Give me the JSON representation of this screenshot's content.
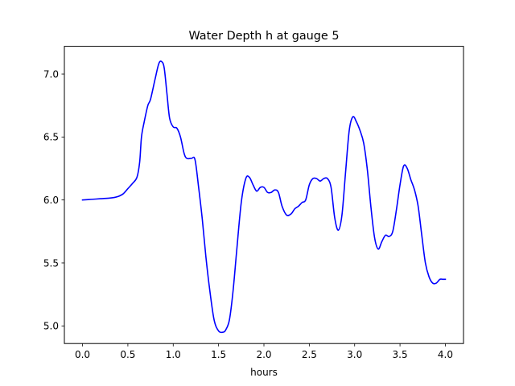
{
  "chart_data": {
    "type": "line",
    "title": "Water Depth h at gauge 5",
    "xlabel": "hours",
    "ylabel": "",
    "xlim": [
      -0.2,
      4.2
    ],
    "ylim": [
      4.86,
      7.22
    ],
    "xticks": [
      0.0,
      0.5,
      1.0,
      1.5,
      2.0,
      2.5,
      3.0,
      3.5,
      4.0
    ],
    "xtick_labels": [
      "0.0",
      "0.5",
      "1.0",
      "1.5",
      "2.0",
      "2.5",
      "3.0",
      "3.5",
      "4.0"
    ],
    "yticks": [
      5.0,
      5.5,
      6.0,
      6.5,
      7.0
    ],
    "ytick_labels": [
      "5.0",
      "5.5",
      "6.0",
      "6.5",
      "7.0"
    ],
    "grid": false,
    "legend": "none",
    "series": [
      {
        "color": "#0000ff",
        "x": [
          0.0,
          0.1,
          0.2,
          0.3,
          0.35,
          0.4,
          0.45,
          0.5,
          0.55,
          0.6,
          0.63,
          0.65,
          0.68,
          0.72,
          0.75,
          0.8,
          0.84,
          0.87,
          0.9,
          0.93,
          0.96,
          1.0,
          1.04,
          1.08,
          1.12,
          1.15,
          1.2,
          1.24,
          1.28,
          1.32,
          1.36,
          1.4,
          1.45,
          1.5,
          1.55,
          1.58,
          1.62,
          1.66,
          1.7,
          1.75,
          1.8,
          1.84,
          1.88,
          1.92,
          1.96,
          2.0,
          2.04,
          2.08,
          2.12,
          2.16,
          2.2,
          2.25,
          2.3,
          2.34,
          2.38,
          2.42,
          2.46,
          2.5,
          2.54,
          2.58,
          2.62,
          2.66,
          2.7,
          2.74,
          2.78,
          2.82,
          2.86,
          2.9,
          2.94,
          2.98,
          3.02,
          3.06,
          3.1,
          3.14,
          3.18,
          3.22,
          3.26,
          3.3,
          3.34,
          3.38,
          3.42,
          3.46,
          3.5,
          3.54,
          3.58,
          3.62,
          3.66,
          3.7,
          3.74,
          3.78,
          3.82,
          3.86,
          3.9,
          3.94,
          3.97,
          4.0
        ],
        "y": [
          6.0,
          6.005,
          6.01,
          6.015,
          6.02,
          6.03,
          6.05,
          6.09,
          6.13,
          6.18,
          6.3,
          6.5,
          6.62,
          6.75,
          6.8,
          6.96,
          7.08,
          7.1,
          7.05,
          6.85,
          6.65,
          6.58,
          6.57,
          6.5,
          6.37,
          6.33,
          6.33,
          6.32,
          6.1,
          5.85,
          5.55,
          5.3,
          5.05,
          4.96,
          4.95,
          4.97,
          5.05,
          5.28,
          5.6,
          5.98,
          6.17,
          6.18,
          6.12,
          6.07,
          6.1,
          6.1,
          6.06,
          6.06,
          6.08,
          6.06,
          5.95,
          5.88,
          5.89,
          5.93,
          5.95,
          5.98,
          6.0,
          6.12,
          6.17,
          6.17,
          6.15,
          6.17,
          6.17,
          6.1,
          5.86,
          5.76,
          5.88,
          6.22,
          6.55,
          6.66,
          6.62,
          6.55,
          6.45,
          6.24,
          5.94,
          5.7,
          5.61,
          5.67,
          5.72,
          5.71,
          5.75,
          5.92,
          6.12,
          6.27,
          6.25,
          6.16,
          6.08,
          5.95,
          5.72,
          5.5,
          5.39,
          5.34,
          5.34,
          5.37,
          5.37,
          5.37
        ]
      }
    ]
  }
}
